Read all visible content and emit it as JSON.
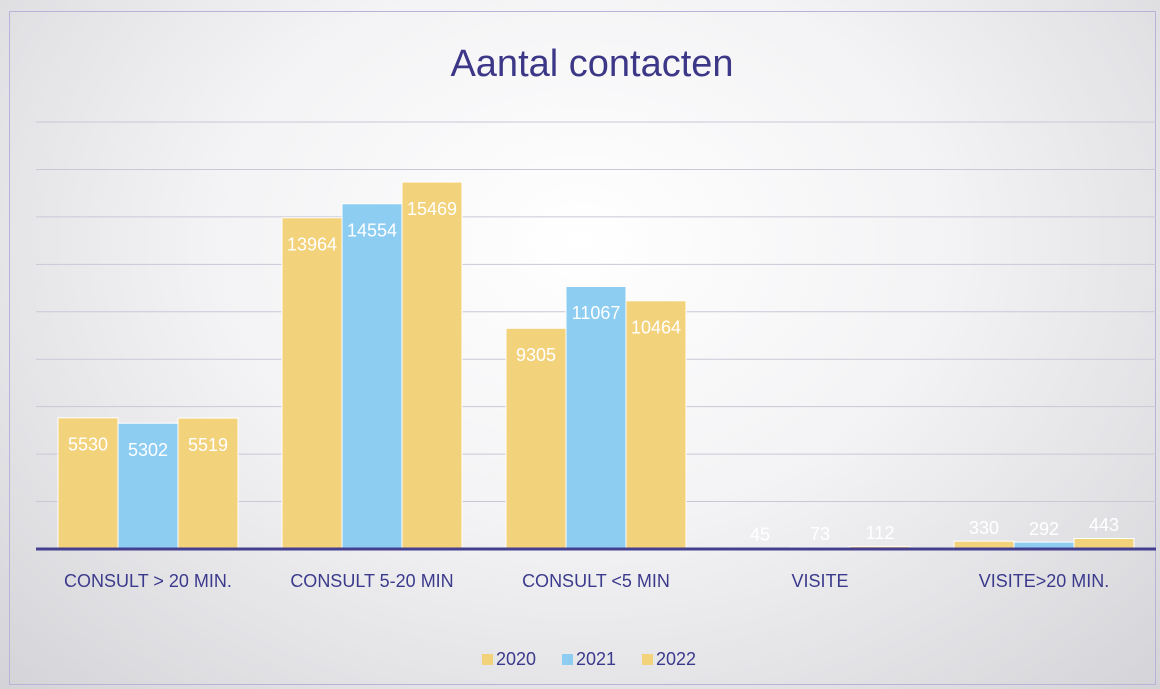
{
  "chart_data": {
    "type": "bar",
    "title": "Aantal contacten",
    "categories": [
      "CONSULT > 20 MIN.",
      "CONSULT 5-20 MIN",
      "CONSULT <5 MIN",
      "VISITE",
      "VISITE>20 MIN."
    ],
    "series": [
      {
        "name": "2020",
        "color": "#f3d27c",
        "values": [
          5530,
          13964,
          9305,
          45,
          330
        ]
      },
      {
        "name": "2021",
        "color": "#8dcdf1",
        "values": [
          5302,
          14554,
          11067,
          73,
          292
        ]
      },
      {
        "name": "2022",
        "color": "#f3d27c",
        "values": [
          5519,
          15469,
          10464,
          112,
          443
        ]
      }
    ],
    "ylim": [
      0,
      18000
    ],
    "yticks": [
      0,
      2000,
      4000,
      6000,
      8000,
      10000,
      12000,
      14000,
      16000,
      18000
    ],
    "grid": true,
    "legend": "bottom"
  }
}
